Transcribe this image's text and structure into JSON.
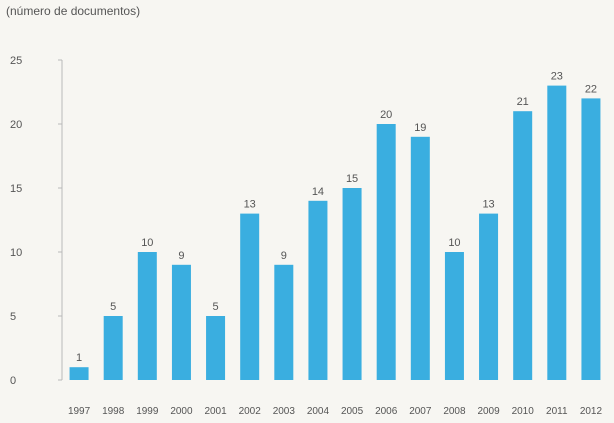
{
  "chart_data": {
    "type": "bar",
    "subtitle": "(número de documentos)",
    "categories": [
      "1997",
      "1998",
      "1999",
      "2000",
      "2001",
      "2002",
      "2003",
      "2004",
      "2005",
      "2006",
      "2007",
      "2008",
      "2009",
      "2010",
      "2011",
      "2012"
    ],
    "values": [
      1,
      5,
      10,
      9,
      5,
      13,
      9,
      14,
      15,
      20,
      19,
      10,
      13,
      21,
      23,
      22
    ],
    "y_ticks": [
      0,
      5,
      10,
      15,
      20,
      25
    ],
    "ylim": [
      0,
      25
    ],
    "grid": false,
    "legend": "none",
    "bar_color": "#3aaee0",
    "data_labels": true
  }
}
